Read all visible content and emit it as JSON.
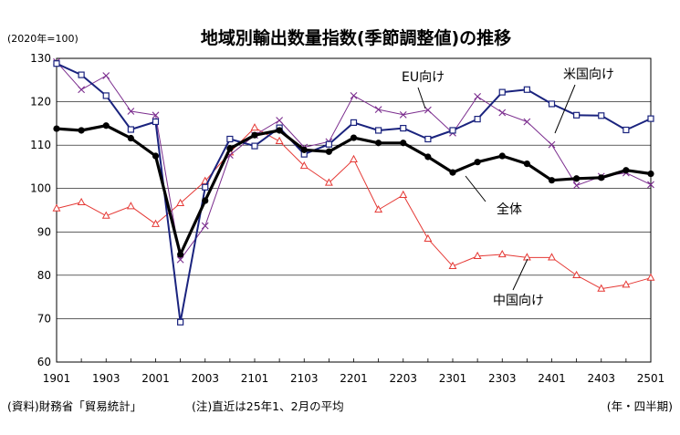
{
  "chart_data": {
    "type": "line",
    "title": "地域別輸出数量指数(季節調整値)の推移",
    "unit_label": "(2020年=100)",
    "x_tick_labels": [
      "1901",
      "1903",
      "2001",
      "2003",
      "2101",
      "2103",
      "2201",
      "2203",
      "2301",
      "2303",
      "2401",
      "2403",
      "2501"
    ],
    "x_unit": "(年・四半期)",
    "ylim": [
      60,
      130
    ],
    "y_ticks": [
      60,
      70,
      80,
      90,
      100,
      110,
      120,
      130
    ],
    "grid": true,
    "x": [
      "1901",
      "1902",
      "1903",
      "1904",
      "2001",
      "2002",
      "2003",
      "2004",
      "2101",
      "2102",
      "2103",
      "2104",
      "2201",
      "2202",
      "2203",
      "2204",
      "2301",
      "2302",
      "2303",
      "2304",
      "2401",
      "2402",
      "2403",
      "2404",
      "2501"
    ],
    "series": [
      {
        "name": "全体",
        "color": "#000000",
        "marker": "circle",
        "values": [
          113.8,
          113.4,
          114.5,
          111.6,
          107.5,
          84.8,
          97.2,
          109.2,
          112.3,
          113.4,
          108.9,
          108.5,
          111.7,
          110.5,
          110.5,
          107.3,
          103.7,
          106.1,
          107.5,
          105.7,
          101.9,
          102.3,
          102.5,
          104.2,
          103.4
        ]
      },
      {
        "name": "米国向け",
        "color": "#1a237e",
        "marker": "square",
        "values": [
          128.8,
          126.2,
          121.4,
          113.6,
          115.4,
          69.2,
          100.3,
          111.4,
          109.8,
          114.0,
          107.9,
          110.2,
          115.2,
          113.4,
          113.9,
          111.4,
          113.4,
          116.0,
          122.2,
          122.8,
          119.5,
          116.9,
          116.8,
          113.5,
          116.1
        ]
      },
      {
        "name": "EU向け",
        "color": "#7b2d8e",
        "marker": "x",
        "values": [
          129.2,
          122.8,
          126.0,
          117.8,
          116.9,
          83.6,
          91.4,
          107.7,
          112.3,
          115.7,
          109.5,
          110.8,
          121.4,
          118.2,
          117.0,
          118.1,
          112.8,
          121.2,
          117.5,
          115.4,
          110.1,
          100.7,
          102.8,
          103.6,
          100.9
        ]
      },
      {
        "name": "中国向け",
        "color": "#e53935",
        "marker": "triangle",
        "values": [
          95.4,
          96.8,
          93.7,
          95.9,
          91.8,
          96.6,
          101.7,
          108.3,
          114.0,
          110.9,
          105.2,
          101.3,
          106.7,
          95.1,
          98.5,
          88.4,
          82.1,
          84.4,
          84.8,
          84.1,
          84.1,
          80.0,
          76.9,
          77.8,
          79.4
        ]
      }
    ],
    "annotations": {
      "eu": "EU向け",
      "us": "米国向け",
      "total": "全体",
      "china": "中国向け"
    }
  },
  "footer": {
    "source": "(資料)財務省「貿易統計」",
    "note": "(注)直近は25年1、2月の平均"
  }
}
